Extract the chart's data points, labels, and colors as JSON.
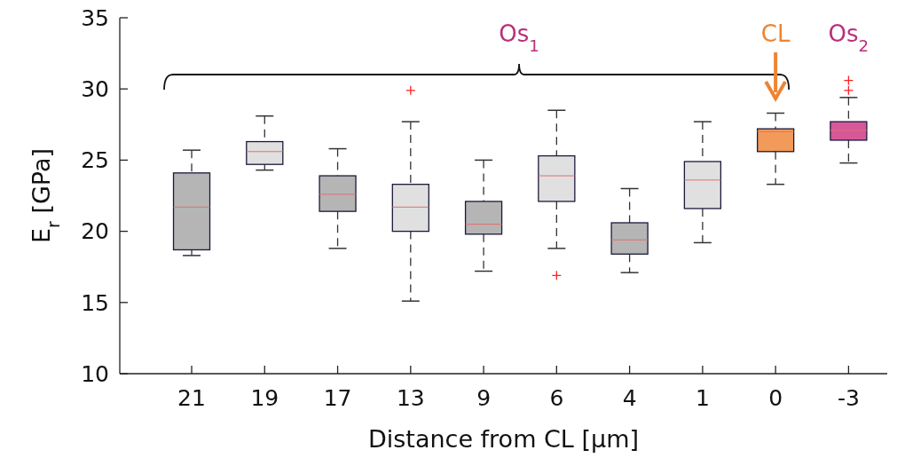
{
  "chart_data": {
    "type": "box",
    "xlabel": "Distance from CL [µm]",
    "ylabel": "E$_{r}$ [GPa]",
    "categories": [
      "21",
      "19",
      "17",
      "13",
      "9",
      "6",
      "4",
      "1",
      "0",
      "-3"
    ],
    "colors": [
      "#b5b5b5",
      "#e0e0e0",
      "#b5b5b5",
      "#e0e0e0",
      "#b5b5b5",
      "#e0e0e0",
      "#b5b5b5",
      "#e0e0e0",
      "#f29a5a",
      "#d6589a"
    ],
    "boxes": [
      {
        "low": 18.3,
        "q1": 18.7,
        "median": 21.7,
        "q3": 24.1,
        "high": 25.7
      },
      {
        "low": 24.3,
        "q1": 24.7,
        "median": 25.6,
        "q3": 26.3,
        "high": 28.1
      },
      {
        "low": 18.8,
        "q1": 21.4,
        "median": 22.6,
        "q3": 23.9,
        "high": 25.8
      },
      {
        "low": 15.1,
        "q1": 20,
        "median": 21.7,
        "q3": 23.3,
        "high": 27.7,
        "outliers": [
          29.9
        ]
      },
      {
        "low": 17.2,
        "q1": 19.8,
        "median": 20.5,
        "q3": 22.1,
        "high": 25
      },
      {
        "low": 18.8,
        "q1": 22.1,
        "median": 23.9,
        "q3": 25.3,
        "high": 28.5,
        "outliers": [
          16.9
        ]
      },
      {
        "low": 17.1,
        "q1": 18.4,
        "median": 19.4,
        "q3": 20.6,
        "high": 23
      },
      {
        "low": 19.2,
        "q1": 21.6,
        "median": 23.6,
        "q3": 24.9,
        "high": 27.7
      },
      {
        "low": 23.3,
        "q1": 25.6,
        "median": 27,
        "q3": 27.2,
        "high": 28.3
      },
      {
        "low": 24.8,
        "q1": 26.4,
        "median": 27.1,
        "q3": 27.7,
        "high": 29.4,
        "outliers": [
          29.9,
          30.6
        ]
      }
    ],
    "ylim": [
      10,
      35
    ],
    "yticks": [
      10,
      15,
      20,
      25,
      30,
      35
    ],
    "grid": false,
    "annotations": [
      "Os$_{1}$",
      {
        "text": "CL",
        "x": "0"
      },
      "Os$_{2}$"
    ]
  }
}
